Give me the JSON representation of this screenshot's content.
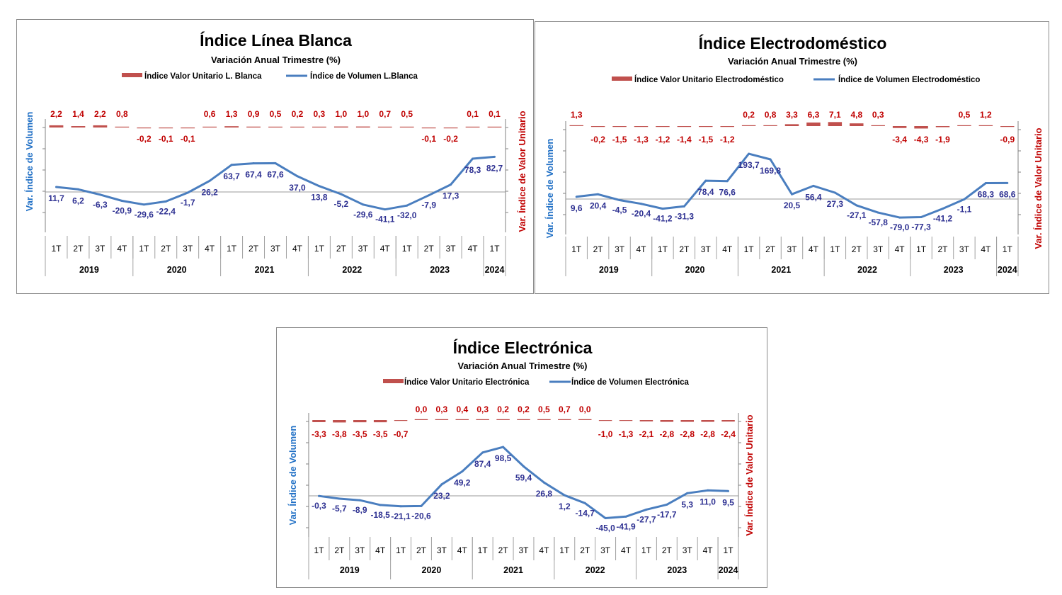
{
  "colors": {
    "volume": "#4a7ebf",
    "unit": "#c0504d",
    "unitText": "#c00000",
    "volText": "#2e3192",
    "axisLabelLeft": "#1f6fc5"
  },
  "panels": [
    {
      "id": "linea-blanca",
      "title": "Índice Línea Blanca",
      "subtitle": "Variación Anual Trimestre  (%)",
      "legend": {
        "unit": "Índice Valor Unitario L. Blanca",
        "volume": "Índice de Volumen L.Blanca"
      },
      "yLeftLabel": "Var. Índice de Volumen",
      "yRightLabel": "Var. Índice de Valor Unitario",
      "chart_data": {
        "type": "bar",
        "quarters": [
          "1T",
          "2T",
          "3T",
          "4T",
          "1T",
          "2T",
          "3T",
          "4T",
          "1T",
          "2T",
          "3T",
          "4T",
          "1T",
          "2T",
          "3T",
          "4T",
          "1T",
          "2T",
          "3T",
          "4T",
          "1T"
        ],
        "years": [
          {
            "label": "2019",
            "count": 4
          },
          {
            "label": "2020",
            "count": 4
          },
          {
            "label": "2021",
            "count": 4
          },
          {
            "label": "2022",
            "count": 4
          },
          {
            "label": "2023",
            "count": 4
          },
          {
            "label": "2024",
            "count": 1
          }
        ],
        "series": [
          {
            "name": "Índice Valor Unitario L. Blanca",
            "type": "bar",
            "axis": "right",
            "values": [
              2.2,
              1.4,
              2.2,
              0.8,
              -0.2,
              -0.1,
              -0.1,
              0.6,
              1.3,
              0.9,
              0.5,
              0.2,
              0.3,
              1.0,
              1.0,
              0.7,
              0.5,
              -0.1,
              -0.2,
              0.1,
              0.1
            ],
            "labels": [
              "2,2",
              "1,4",
              "2,2",
              "0,8",
              "-0,2",
              "-0,1",
              "-0,1",
              "0,6",
              "1,3",
              "0,9",
              "0,5",
              "0,2",
              "0,3",
              "1,0",
              "1,0",
              "0,7",
              "0,5",
              "-0,1",
              "-0,2",
              "0,1",
              "0,1"
            ]
          },
          {
            "name": "Índice de Volumen L.Blanca",
            "type": "line",
            "axis": "left",
            "values": [
              11.7,
              6.2,
              -6.3,
              -20.9,
              -29.6,
              -22.4,
              -1.7,
              26.2,
              63.7,
              67.4,
              67.6,
              37.0,
              13.8,
              -5.2,
              -29.6,
              -41.1,
              -32.0,
              -7.9,
              17.3,
              78.3,
              82.7
            ],
            "labels": [
              "11,7",
              "6,2",
              "-6,3",
              "-20,9",
              "-29,6",
              "-22,4",
              "-1,7",
              "26,2",
              "63,7",
              "67,4",
              "67,6",
              "37,0",
              "13,8",
              "-5,2",
              "-29,6",
              "-41,1",
              "-32,0",
              "-7,9",
              "17,3",
              "78,3",
              "82,7"
            ]
          }
        ]
      }
    },
    {
      "id": "electrodomestico",
      "title": "Índice Electrodoméstico",
      "subtitle": "Variación Anual Trimestre  (%)",
      "legend": {
        "unit": "Índice Valor Unitario Electrodoméstico",
        "volume": "Índice de Volumen Electrodoméstico"
      },
      "yLeftLabel": "Var. Índice de Volumen",
      "yRightLabel": "Var. Índice de Valor Unitario",
      "chart_data": {
        "type": "bar",
        "quarters": [
          "1T",
          "2T",
          "3T",
          "4T",
          "1T",
          "2T",
          "3T",
          "4T",
          "1T",
          "2T",
          "3T",
          "4T",
          "1T",
          "2T",
          "3T",
          "4T",
          "1T",
          "2T",
          "3T",
          "4T",
          "1T"
        ],
        "years": [
          {
            "label": "2019",
            "count": 4
          },
          {
            "label": "2020",
            "count": 4
          },
          {
            "label": "2021",
            "count": 4
          },
          {
            "label": "2022",
            "count": 4
          },
          {
            "label": "2023",
            "count": 4
          },
          {
            "label": "2024",
            "count": 1
          }
        ],
        "series": [
          {
            "name": "Índice Valor Unitario Electrodoméstico",
            "type": "bar",
            "axis": "right",
            "values": [
              1.3,
              -0.2,
              -1.5,
              -1.3,
              -1.2,
              -1.4,
              -1.5,
              -1.2,
              0.2,
              0.8,
              3.3,
              6.3,
              7.1,
              4.8,
              0.3,
              -3.4,
              -4.3,
              -1.9,
              0.5,
              1.2,
              -0.9
            ],
            "labels": [
              "1,3",
              "-0,2",
              "-1,5",
              "-1,3",
              "-1,2",
              "-1,4",
              "-1,5",
              "-1,2",
              "0,2",
              "0,8",
              "3,3",
              "6,3",
              "7,1",
              "4,8",
              "0,3",
              "-3,4",
              "-4,3",
              "-1,9",
              "0,5",
              "1,2",
              "-0,9"
            ]
          },
          {
            "name": "Índice de Volumen Electrodoméstico",
            "type": "line",
            "axis": "left",
            "values": [
              9.6,
              20.4,
              -4.5,
              -20.4,
              -41.2,
              -31.3,
              78.4,
              76.6,
              193.7,
              169.8,
              20.5,
              56.4,
              27.3,
              -27.1,
              -57.8,
              -79.0,
              -77.3,
              -41.2,
              -1.1,
              68.3,
              68.6
            ],
            "labels": [
              "9,6",
              "20,4",
              "-4,5",
              "-20,4",
              "-41,2",
              "-31,3",
              "78,4",
              "76,6",
              "193,7",
              "169,8",
              "20,5",
              "56,4",
              "27,3",
              "-27,1",
              "-57,8",
              "-79,0",
              "-77,3",
              "-41,2",
              "-1,1",
              "68,3",
              "68,6"
            ]
          }
        ]
      }
    },
    {
      "id": "electronica",
      "title": "Índice Electrónica",
      "subtitle": "Variación Anual Trimestre  (%)",
      "legend": {
        "unit": "Índice Valor Unitario Electrónica",
        "volume": "Índice de Volumen Electrónica"
      },
      "yLeftLabel": "Var. Índice de Volumen",
      "yRightLabel": "Var. Índice de Valor Unitario",
      "chart_data": {
        "type": "bar",
        "quarters": [
          "1T",
          "2T",
          "3T",
          "4T",
          "1T",
          "2T",
          "3T",
          "4T",
          "1T",
          "2T",
          "3T",
          "4T",
          "1T",
          "2T",
          "3T",
          "4T",
          "1T",
          "2T",
          "3T",
          "4T",
          "1T"
        ],
        "years": [
          {
            "label": "2019",
            "count": 4
          },
          {
            "label": "2020",
            "count": 4
          },
          {
            "label": "2021",
            "count": 4
          },
          {
            "label": "2022",
            "count": 4
          },
          {
            "label": "2023",
            "count": 4
          },
          {
            "label": "2024",
            "count": 1
          }
        ],
        "series": [
          {
            "name": "Índice Valor Unitario Electrónica",
            "type": "bar",
            "axis": "right",
            "values": [
              -3.3,
              -3.8,
              -3.5,
              -3.5,
              -0.7,
              0.0,
              0.3,
              0.4,
              0.3,
              0.2,
              0.2,
              0.5,
              0.7,
              0.0,
              -1.0,
              -1.3,
              -2.1,
              -2.8,
              -2.8,
              -2.8,
              -2.4
            ],
            "labels": [
              "-3,3",
              "-3,8",
              "-3,5",
              "-3,5",
              "-0,7",
              "0,0",
              "0,3",
              "0,4",
              "0,3",
              "0,2",
              "0,2",
              "0,5",
              "0,7",
              "0,0",
              "-1,0",
              "-1,3",
              "-2,1",
              "-2,8",
              "-2,8",
              "-2,8",
              "-2,4"
            ]
          },
          {
            "name": "Índice de Volumen Electrónica",
            "type": "line",
            "axis": "left",
            "values": [
              -0.3,
              -5.7,
              -8.9,
              -18.5,
              -21.1,
              -20.6,
              23.2,
              49.2,
              87.4,
              98.5,
              59.4,
              26.8,
              1.2,
              -14.7,
              -45.0,
              -41.9,
              -27.7,
              -17.7,
              5.3,
              11.0,
              9.5
            ],
            "labels": [
              "-0,3",
              "-5,7",
              "-8,9",
              "-18,5",
              "-21,1",
              "-20,6",
              "23,2",
              "49,2",
              "87,4",
              "98,5",
              "59,4",
              "26,8",
              "1,2",
              "-14,7",
              "-45,0",
              "-41,9",
              "-27,7",
              "-17,7",
              "5,3",
              "11,0",
              "9,5"
            ]
          }
        ]
      }
    }
  ]
}
